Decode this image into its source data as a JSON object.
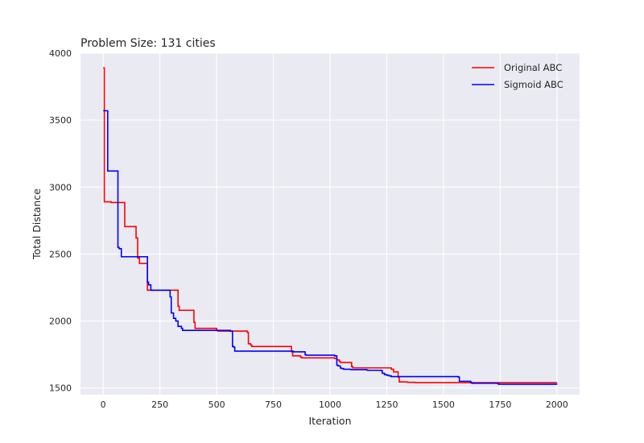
{
  "chart_data": {
    "type": "line",
    "title": "Problem Size: 131 cities",
    "xlabel": "Iteration",
    "ylabel": "Total Distance",
    "xlim": [
      -100,
      2100
    ],
    "ylim": [
      1450,
      4000
    ],
    "xticks": [
      0,
      250,
      500,
      750,
      1000,
      1250,
      1500,
      1750,
      2000
    ],
    "yticks": [
      1500,
      2000,
      2500,
      3000,
      3500,
      4000
    ],
    "grid": true,
    "legend_position": "top-right",
    "series": [
      {
        "name": "Original ABC",
        "color": "#ff0000",
        "step": true,
        "x": [
          0,
          5,
          35,
          95,
          145,
          152,
          160,
          195,
          330,
          335,
          400,
          405,
          500,
          505,
          635,
          640,
          650,
          655,
          830,
          835,
          870,
          875,
          1020,
          1030,
          1040,
          1045,
          1095,
          1100,
          1270,
          1280,
          1300,
          1305,
          1340,
          1345,
          1375,
          1380,
          1570,
          1575,
          2000
        ],
        "y": [
          3890,
          2890,
          2885,
          2705,
          2620,
          2470,
          2430,
          2230,
          2110,
          2080,
          1990,
          1945,
          1930,
          1925,
          1915,
          1830,
          1820,
          1810,
          1770,
          1740,
          1730,
          1725,
          1720,
          1710,
          1700,
          1690,
          1660,
          1650,
          1640,
          1620,
          1580,
          1545,
          1543,
          1542,
          1541,
          1540,
          1540,
          1540,
          1540
        ]
      },
      {
        "name": "Sigmoid ABC",
        "color": "#0000ff",
        "step": true,
        "x": [
          0,
          20,
          65,
          70,
          80,
          195,
          200,
          210,
          295,
          300,
          310,
          320,
          330,
          345,
          350,
          560,
          570,
          575,
          580,
          835,
          840,
          890,
          895,
          1020,
          1030,
          1035,
          1045,
          1050,
          1060,
          1090,
          1095,
          1160,
          1165,
          1225,
          1230,
          1240,
          1250,
          1260,
          1270,
          1565,
          1570,
          1620,
          1625,
          1740,
          1745,
          2000
        ],
        "y": [
          3570,
          3120,
          2550,
          2540,
          2480,
          2290,
          2270,
          2230,
          2180,
          2060,
          2020,
          2000,
          1960,
          1945,
          1930,
          1925,
          1810,
          1805,
          1775,
          1773,
          1770,
          1748,
          1745,
          1740,
          1670,
          1665,
          1650,
          1645,
          1640,
          1638,
          1637,
          1635,
          1632,
          1630,
          1610,
          1600,
          1595,
          1590,
          1585,
          1582,
          1550,
          1540,
          1535,
          1530,
          1528,
          1527
        ]
      }
    ]
  }
}
